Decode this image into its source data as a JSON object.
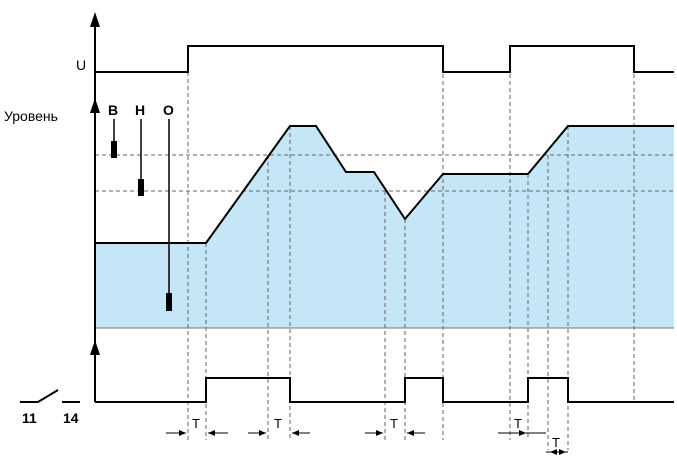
{
  "labels": {
    "supply": "U",
    "level_axis": "Уровень",
    "probe_b": "B",
    "probe_h": "H",
    "probe_o": "O",
    "contact_11": "11",
    "contact_14": "14",
    "delay": "T"
  },
  "colors": {
    "fill": "#c4e6f6",
    "line": "#000000",
    "dash": "#555555"
  }
}
